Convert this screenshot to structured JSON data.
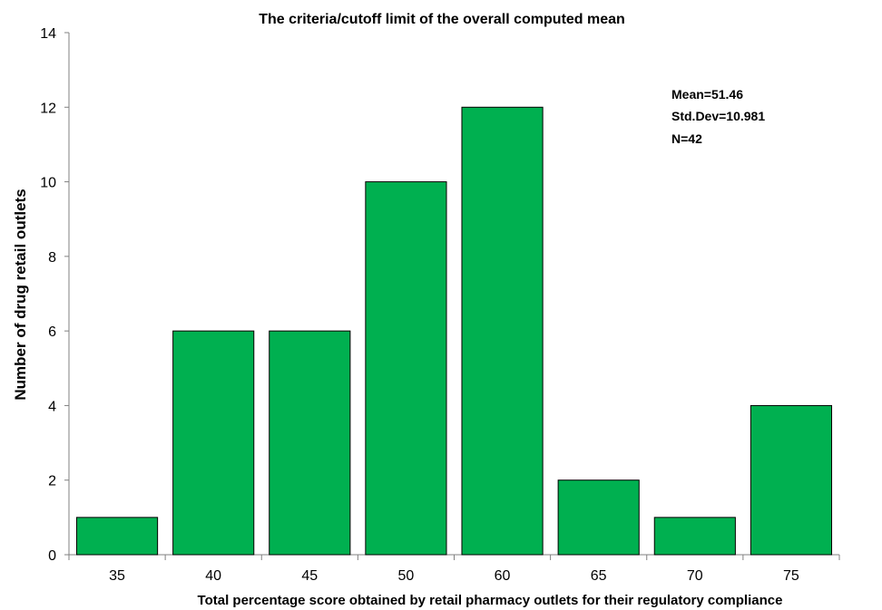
{
  "chart_data": {
    "type": "bar",
    "title": "The criteria/cutoff limit of the overall computed mean",
    "xlabel": "Total percentage score obtained by retail pharmacy outlets for their regulatory compliance",
    "ylabel": "Number of drug retail outlets",
    "categories": [
      "35",
      "40",
      "45",
      "50",
      "60",
      "65",
      "70",
      "75"
    ],
    "values": [
      1,
      6,
      6,
      10,
      12,
      2,
      1,
      4
    ],
    "ylim": [
      0,
      14
    ],
    "yticks": [
      0,
      2,
      4,
      6,
      8,
      10,
      12,
      14
    ],
    "grid": false,
    "legend": "none",
    "bar_color": "#00b050",
    "annotations": [
      "Mean=51.46",
      "Std.Dev=10.981",
      "N=42"
    ]
  }
}
